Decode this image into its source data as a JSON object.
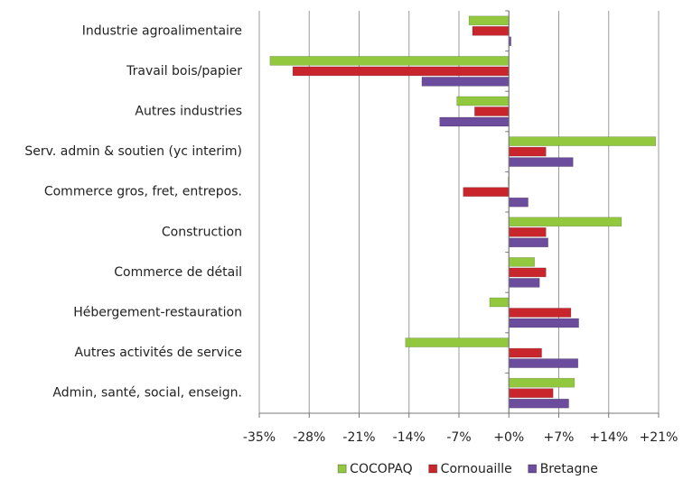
{
  "chart_data": {
    "type": "bar",
    "orientation": "horizontal",
    "categories": [
      "Industrie agroalimentaire",
      "Travail bois/papier",
      "Autres industries",
      "Serv. admin & soutien (yc interim)",
      "Commerce gros, fret, entrepos.",
      "Construction",
      "Commerce de détail",
      "Hébergement-restauration",
      "Autres activités de service",
      "Admin, santé, social, enseign."
    ],
    "series": [
      {
        "name": "COCOPAQ",
        "color": "#92c83e",
        "values": [
          -5.6,
          -33.5,
          -7.3,
          20.6,
          -0.1,
          15.8,
          3.6,
          -2.7,
          -14.5,
          9.2
        ]
      },
      {
        "name": "Cornouaille",
        "color": "#c9252c",
        "values": [
          -5.1,
          -30.3,
          -4.8,
          5.2,
          -6.4,
          5.2,
          5.2,
          8.7,
          4.6,
          6.2
        ]
      },
      {
        "name": "Bretagne",
        "color": "#6c4c9c",
        "values": [
          0.3,
          -12.2,
          -9.7,
          9.0,
          2.7,
          5.5,
          4.3,
          9.8,
          9.7,
          8.4
        ]
      }
    ],
    "xlim": [
      -35,
      21
    ],
    "xticks": [
      {
        "value": -35,
        "label": "-35%"
      },
      {
        "value": -28,
        "label": "-28%"
      },
      {
        "value": -21,
        "label": "-21%"
      },
      {
        "value": -14,
        "label": "-14%"
      },
      {
        "value": -7,
        "label": "-7%"
      },
      {
        "value": 0,
        "label": "+0%"
      },
      {
        "value": 7,
        "label": "+7%"
      },
      {
        "value": 14,
        "label": "+14%"
      },
      {
        "value": 21,
        "label": "+21%"
      }
    ],
    "grid": true,
    "legend": "bottom"
  }
}
